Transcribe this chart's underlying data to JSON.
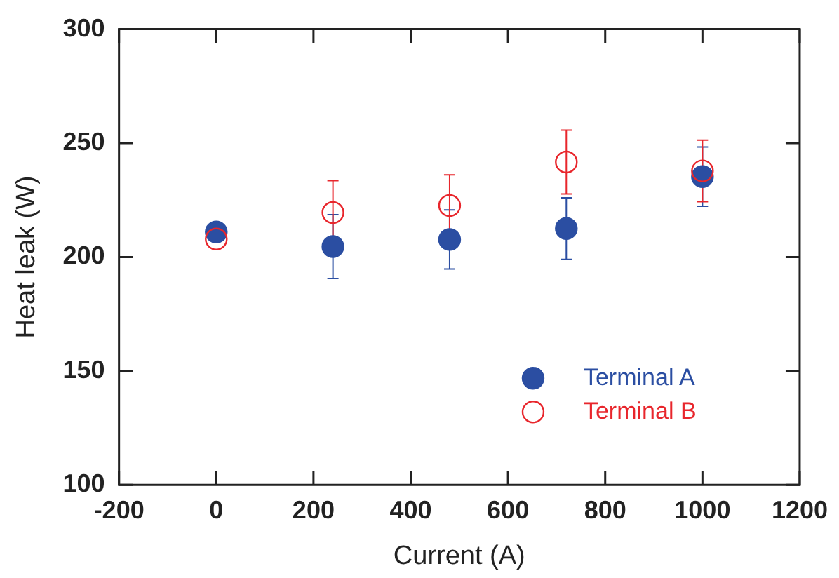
{
  "chart_data": {
    "type": "scatter",
    "xlabel": "Current (A)",
    "ylabel": "Heat leak (W)",
    "xlim": [
      -200,
      1200
    ],
    "xticks": [
      -200,
      0,
      200,
      400,
      600,
      800,
      1000,
      1200
    ],
    "ylim": [
      100,
      300
    ],
    "yticks": [
      100,
      150,
      200,
      250,
      300
    ],
    "grid": false,
    "legend": "bottom right",
    "marker": "circle",
    "series": [
      {
        "name": "Terminal A",
        "color": "#2b4ea2",
        "x": [
          0,
          240,
          480,
          720,
          1000
        ],
        "values": [
          211,
          204.6,
          207.7,
          212.5,
          235.3
        ],
        "errors": [
          null,
          14,
          13,
          13.5,
          13
        ]
      },
      {
        "name": "Terminal B",
        "color": "#e8262c",
        "x": [
          0,
          240,
          480,
          720,
          1000
        ],
        "values": [
          207.9,
          219.5,
          222.6,
          241.7,
          237.8
        ],
        "errors": [
          null,
          14,
          13.5,
          14,
          13.5
        ]
      }
    ]
  }
}
